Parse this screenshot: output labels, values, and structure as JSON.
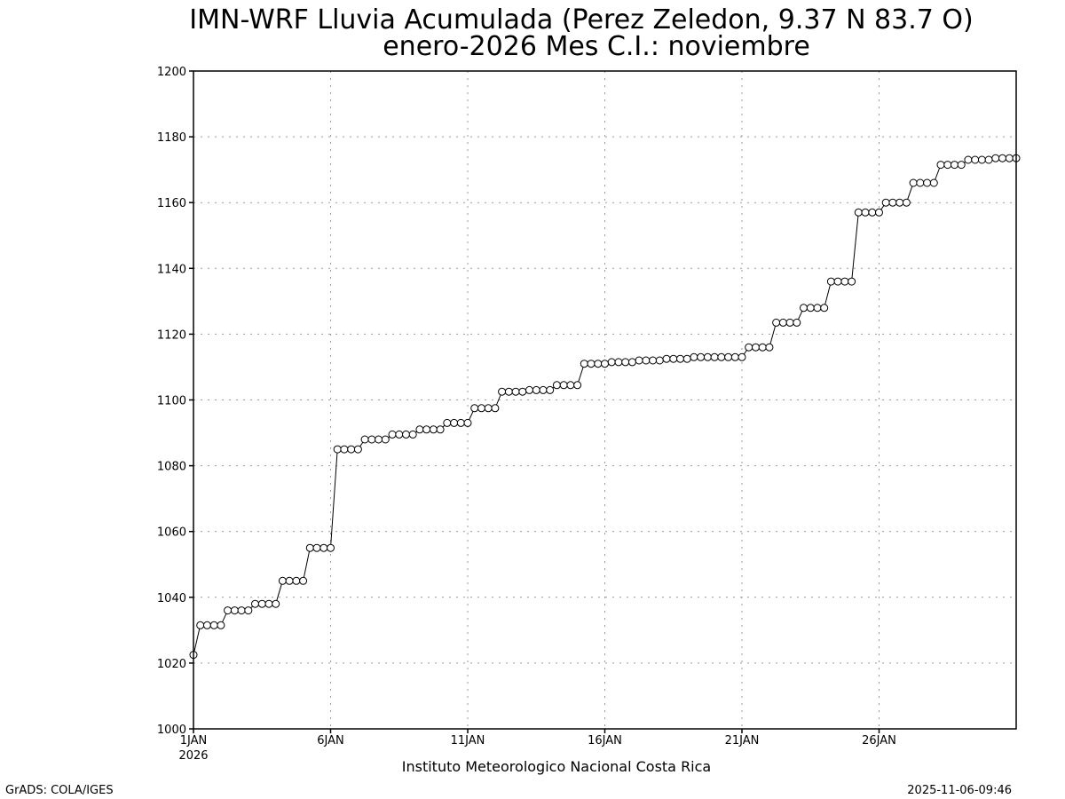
{
  "chart_data": {
    "type": "line",
    "title": "IMN-WRF  Lluvia Acumulada (Perez Zeledon, 9.37  N 83.7  O)",
    "subtitle": "enero-2026 Mes C.I.: noviembre",
    "xlabel": "Instituto Meteorologico Nacional Costa Rica",
    "ylabel": "",
    "ylim": [
      1000,
      1200
    ],
    "yticks": [
      1000,
      1020,
      1040,
      1060,
      1080,
      1100,
      1120,
      1140,
      1160,
      1180,
      1200
    ],
    "xlim": [
      0,
      30
    ],
    "xticks": [
      {
        "day": 1,
        "label": "1JAN",
        "sublabel": "2026"
      },
      {
        "day": 6,
        "label": "6JAN",
        "sublabel": ""
      },
      {
        "day": 11,
        "label": "11JAN",
        "sublabel": ""
      },
      {
        "day": 16,
        "label": "16JAN",
        "sublabel": ""
      },
      {
        "day": 21,
        "label": "21JAN",
        "sublabel": ""
      },
      {
        "day": 26,
        "label": "26JAN",
        "sublabel": ""
      }
    ],
    "grid": true,
    "time_step_hours": 6,
    "values": [
      1022.5,
      1031.5,
      1031.5,
      1031.5,
      1031.5,
      1036,
      1036,
      1036,
      1036,
      1038,
      1038,
      1038,
      1038,
      1045,
      1045,
      1045,
      1045,
      1055,
      1055,
      1055,
      1055,
      1085,
      1085,
      1085,
      1085,
      1088,
      1088,
      1088,
      1088,
      1089.5,
      1089.5,
      1089.5,
      1089.5,
      1091,
      1091,
      1091,
      1091,
      1093,
      1093,
      1093,
      1093,
      1097.5,
      1097.5,
      1097.5,
      1097.5,
      1102.5,
      1102.5,
      1102.5,
      1102.5,
      1103,
      1103,
      1103,
      1103,
      1104.5,
      1104.5,
      1104.5,
      1104.5,
      1111,
      1111,
      1111,
      1111,
      1111.5,
      1111.5,
      1111.5,
      1111.5,
      1112,
      1112,
      1112,
      1112,
      1112.5,
      1112.5,
      1112.5,
      1112.5,
      1113,
      1113,
      1113,
      1113,
      1113,
      1113,
      1113,
      1113,
      1116,
      1116,
      1116,
      1116,
      1123.5,
      1123.5,
      1123.5,
      1123.5,
      1128,
      1128,
      1128,
      1128,
      1136,
      1136,
      1136,
      1136,
      1157,
      1157,
      1157,
      1157,
      1160,
      1160,
      1160,
      1160,
      1166,
      1166,
      1166,
      1166,
      1171.5,
      1171.5,
      1171.5,
      1171.5,
      1173,
      1173,
      1173,
      1173,
      1173.5,
      1173.5,
      1173.5,
      1173.5
    ]
  },
  "footer": {
    "left": "GrADS: COLA/IGES",
    "right": "2025-11-06-09:46"
  }
}
